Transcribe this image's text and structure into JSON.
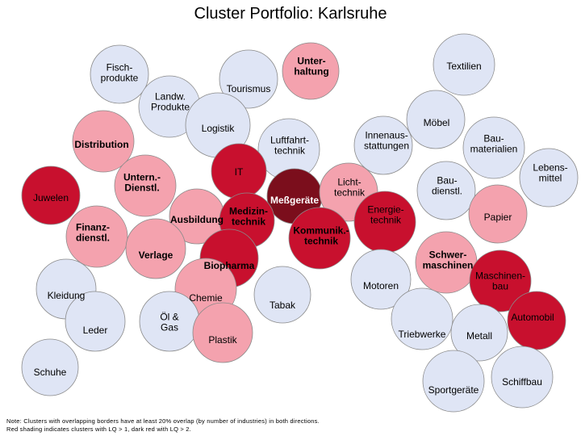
{
  "title": "Cluster Portfolio: Karlsruhe",
  "colors": {
    "lq_below_1": "#dfe5f5",
    "lq_above_1": "#f4a2ae",
    "lq_above_2": "#c8102e",
    "highlight": "#7b0e1c",
    "outline": "#8a8a8a"
  },
  "clusters": [
    {
      "id": "fischprodukte",
      "label": [
        "Fisch-",
        "produkte"
      ],
      "shade": "lq_below_1",
      "bold": false
    },
    {
      "id": "tourismus",
      "label": [
        "Tourismus"
      ],
      "shade": "lq_below_1",
      "bold": false
    },
    {
      "id": "unterhaltung",
      "label": [
        "Unter-",
        "haltung"
      ],
      "shade": "lq_above_1",
      "bold": true
    },
    {
      "id": "textilien",
      "label": [
        "Textilien"
      ],
      "shade": "lq_below_1",
      "bold": false
    },
    {
      "id": "landw-produkte",
      "label": [
        "Landw.",
        "Produkte"
      ],
      "shade": "lq_below_1",
      "bold": false
    },
    {
      "id": "logistik",
      "label": [
        "Logistik"
      ],
      "shade": "lq_below_1",
      "bold": false
    },
    {
      "id": "moebel",
      "label": [
        "Möbel"
      ],
      "shade": "lq_below_1",
      "bold": false
    },
    {
      "id": "distribution",
      "label": [
        "Distribution"
      ],
      "shade": "lq_above_1",
      "bold": true
    },
    {
      "id": "luftfahrttechnik",
      "label": [
        "Luftfahrt-",
        "technik"
      ],
      "shade": "lq_below_1",
      "bold": false
    },
    {
      "id": "innenausstattungen",
      "label": [
        "Innenaus-",
        "stattungen"
      ],
      "shade": "lq_below_1",
      "bold": false
    },
    {
      "id": "baumaterialien",
      "label": [
        "Bau-",
        "materialien"
      ],
      "shade": "lq_below_1",
      "bold": false
    },
    {
      "id": "it",
      "label": [
        "IT"
      ],
      "shade": "lq_above_2",
      "bold": false
    },
    {
      "id": "lebensmittel",
      "label": [
        "Lebens-",
        "mittel"
      ],
      "shade": "lq_below_1",
      "bold": false
    },
    {
      "id": "juwelen",
      "label": [
        "Juwelen"
      ],
      "shade": "lq_above_2",
      "bold": false
    },
    {
      "id": "untern-dienstl",
      "label": [
        "Untern.-",
        "Dienstl."
      ],
      "shade": "lq_above_1",
      "bold": true
    },
    {
      "id": "messgeraete",
      "label": [
        "Meßgeräte"
      ],
      "shade": "highlight",
      "bold": true
    },
    {
      "id": "lichttechnik",
      "label": [
        "Licht-",
        "technik"
      ],
      "shade": "lq_above_1",
      "bold": false
    },
    {
      "id": "baudienstl",
      "label": [
        "Bau-",
        "dienstl."
      ],
      "shade": "lq_below_1",
      "bold": false
    },
    {
      "id": "ausbildung",
      "label": [
        "Ausbildung"
      ],
      "shade": "lq_above_1",
      "bold": true
    },
    {
      "id": "medizintechnik",
      "label": [
        "Medizin-",
        "technik"
      ],
      "shade": "lq_above_2",
      "bold": true
    },
    {
      "id": "energietechnik",
      "label": [
        "Energie-",
        "technik"
      ],
      "shade": "lq_above_2",
      "bold": false
    },
    {
      "id": "papier",
      "label": [
        "Papier"
      ],
      "shade": "lq_above_1",
      "bold": false
    },
    {
      "id": "finanzdienstl",
      "label": [
        "Finanz-",
        "dienstl."
      ],
      "shade": "lq_above_1",
      "bold": true
    },
    {
      "id": "verlage",
      "label": [
        "Verlage"
      ],
      "shade": "lq_above_1",
      "bold": true
    },
    {
      "id": "kommunikationstechnik",
      "label": [
        "Kommunik.-",
        "technik"
      ],
      "shade": "lq_above_2",
      "bold": true
    },
    {
      "id": "biopharma",
      "label": [
        "Biopharma"
      ],
      "shade": "lq_above_2",
      "bold": true
    },
    {
      "id": "motoren",
      "label": [
        "Motoren"
      ],
      "shade": "lq_below_1",
      "bold": false
    },
    {
      "id": "schwermaschinen",
      "label": [
        "Schwer-",
        "maschinen"
      ],
      "shade": "lq_above_1",
      "bold": true
    },
    {
      "id": "maschinenbau",
      "label": [
        "Maschinen-",
        "bau"
      ],
      "shade": "lq_above_2",
      "bold": false
    },
    {
      "id": "kleidung",
      "label": [
        "Kleidung"
      ],
      "shade": "lq_below_1",
      "bold": false
    },
    {
      "id": "chemie",
      "label": [
        "Chemie"
      ],
      "shade": "lq_above_1",
      "bold": false
    },
    {
      "id": "tabak",
      "label": [
        "Tabak"
      ],
      "shade": "lq_below_1",
      "bold": false
    },
    {
      "id": "automobil",
      "label": [
        "Automobil"
      ],
      "shade": "lq_above_2",
      "bold": false
    },
    {
      "id": "oel-gas",
      "label": [
        "Öl &",
        "Gas"
      ],
      "shade": "lq_below_1",
      "bold": false
    },
    {
      "id": "leder",
      "label": [
        "Leder"
      ],
      "shade": "lq_below_1",
      "bold": false
    },
    {
      "id": "plastik",
      "label": [
        "Plastik"
      ],
      "shade": "lq_above_1",
      "bold": false
    },
    {
      "id": "triebwerke",
      "label": [
        "Triebwerke"
      ],
      "shade": "lq_below_1",
      "bold": false
    },
    {
      "id": "metall",
      "label": [
        "Metall"
      ],
      "shade": "lq_below_1",
      "bold": false
    },
    {
      "id": "schuhe",
      "label": [
        "Schuhe"
      ],
      "shade": "lq_below_1",
      "bold": false
    },
    {
      "id": "sportgeraete",
      "label": [
        "Sportgeräte"
      ],
      "shade": "lq_below_1",
      "bold": false
    },
    {
      "id": "schiffbau",
      "label": [
        "Schiffbau"
      ],
      "shade": "lq_below_1",
      "bold": false
    }
  ],
  "note": {
    "line1": "Note: Clusters with overlapping borders have at least 20% overlap (by number of industries) in both directions.",
    "line2": "Red shading indicates clusters with LQ > 1, dark red with LQ > 2."
  }
}
